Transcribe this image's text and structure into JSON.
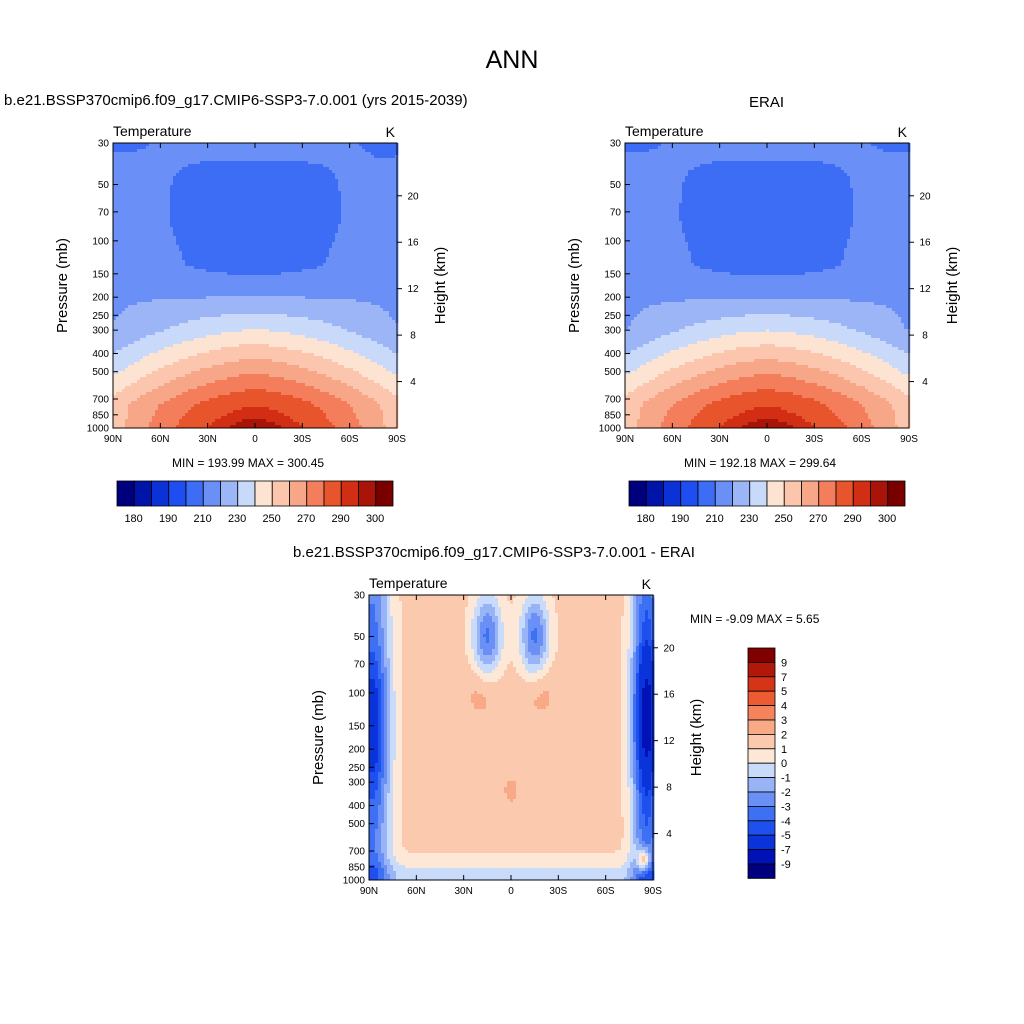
{
  "page_title": "ANN",
  "colors": {
    "abs_scale": [
      "#00007f",
      "#0014a8",
      "#0a32d6",
      "#1e4ef0",
      "#3d6cf5",
      "#6a8ff6",
      "#9cb5f7",
      "#c9d9fa",
      "#fde4d2",
      "#fbc6ad",
      "#f7a788",
      "#f47e5c",
      "#e8552c",
      "#d12e13",
      "#a81408",
      "#7a0000"
    ],
    "diff_scale": [
      "#00007f",
      "#0012b5",
      "#0a34da",
      "#1d50ee",
      "#3e70f4",
      "#6a90f6",
      "#99b3f7",
      "#c8dbfb",
      "#fde8d8",
      "#fbc9ae",
      "#f8a985",
      "#f5845c",
      "#ec5b31",
      "#d63418",
      "#b1180a",
      "#800000"
    ]
  },
  "chart_data": [
    {
      "type": "heatmap",
      "title": "b.e21.BSSP370cmip6.f09_g17.CMIP6-SSP3-7.0.001 (yrs 2015-2039)",
      "left_label": "Temperature",
      "units": "K",
      "xlabel": "",
      "ylabel": "Pressure (mb)",
      "y2label": "Height (km)",
      "x_ticks": [
        "90N",
        "60N",
        "30N",
        "0",
        "30S",
        "60S",
        "90S"
      ],
      "y_ticks": [
        "30",
        "50",
        "70",
        "100",
        "150",
        "200",
        "250",
        "300",
        "400",
        "500",
        "700",
        "850",
        "1000"
      ],
      "y_log": true,
      "y2_ticks": [
        "4",
        "8",
        "12",
        "16",
        "20"
      ],
      "min_max_text": "MIN = 193.99  MAX = 300.45",
      "min": 193.99,
      "max": 300.45,
      "colorbar_labels": [
        "180",
        "190",
        "210",
        "230",
        "250",
        "270",
        "290",
        "300"
      ],
      "colorbar_levels": [
        180,
        185,
        190,
        200,
        210,
        220,
        230,
        240,
        250,
        260,
        270,
        280,
        290,
        295,
        300
      ]
    },
    {
      "type": "heatmap",
      "title": "ERAI",
      "left_label": "Temperature",
      "units": "K",
      "xlabel": "",
      "ylabel": "Pressure (mb)",
      "y2label": "Height (km)",
      "x_ticks": [
        "90N",
        "60N",
        "30N",
        "0",
        "30S",
        "60S",
        "90S"
      ],
      "y_ticks": [
        "30",
        "50",
        "70",
        "100",
        "150",
        "200",
        "250",
        "300",
        "400",
        "500",
        "700",
        "850",
        "1000"
      ],
      "y_log": true,
      "y2_ticks": [
        "4",
        "8",
        "12",
        "16",
        "20"
      ],
      "min_max_text": "MIN = 192.18  MAX = 299.64",
      "min": 192.18,
      "max": 299.64,
      "colorbar_labels": [
        "180",
        "190",
        "210",
        "230",
        "250",
        "270",
        "290",
        "300"
      ],
      "colorbar_levels": [
        180,
        185,
        190,
        200,
        210,
        220,
        230,
        240,
        250,
        260,
        270,
        280,
        290,
        295,
        300
      ]
    },
    {
      "type": "heatmap",
      "title": "b.e21.BSSP370cmip6.f09_g17.CMIP6-SSP3-7.0.001 - ERAI",
      "left_label": "Temperature",
      "units": "K",
      "xlabel": "",
      "ylabel": "Pressure (mb)",
      "y2label": "Height (km)",
      "x_ticks": [
        "90N",
        "60N",
        "30N",
        "0",
        "30S",
        "60S",
        "90S"
      ],
      "y_ticks": [
        "30",
        "50",
        "70",
        "100",
        "150",
        "200",
        "250",
        "300",
        "400",
        "500",
        "700",
        "850",
        "1000"
      ],
      "y_log": true,
      "y2_ticks": [
        "4",
        "8",
        "12",
        "16",
        "20"
      ],
      "min_max_text": "MIN =  -9.09  MAX =   5.65",
      "min": -9.09,
      "max": 5.65,
      "colorbar_labels": [
        "9",
        "7",
        "5",
        "4",
        "3",
        "2",
        "1",
        "0",
        "-1",
        "-2",
        "-3",
        "-4",
        "-5",
        "-7",
        "-9"
      ],
      "colorbar_levels": [
        -9,
        -7,
        -5,
        -4,
        -3,
        -2,
        -1,
        0,
        1,
        2,
        3,
        4,
        5,
        7,
        9
      ]
    }
  ]
}
